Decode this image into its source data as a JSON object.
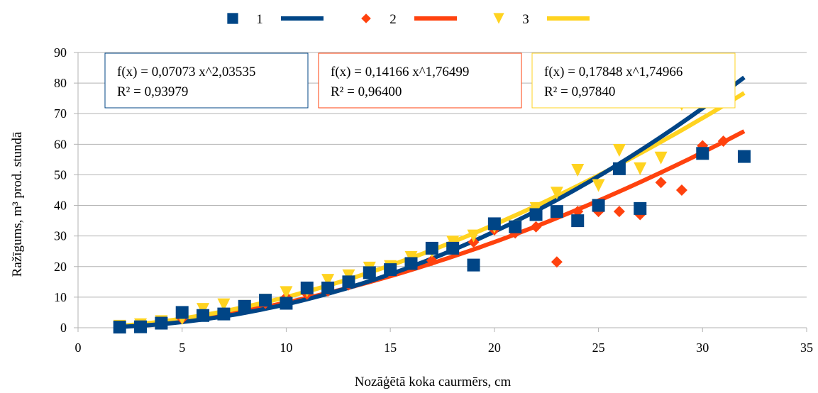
{
  "chart_data": {
    "type": "scatter",
    "xlabel": "Nozāģētā koka caurmērs, cm",
    "ylabel": "Ražīgums, m³ prod. stundā",
    "xlim": [
      0,
      35
    ],
    "ylim": [
      0,
      90
    ],
    "x_ticks": [
      "0",
      "5",
      "10",
      "15",
      "20",
      "25",
      "30",
      "35"
    ],
    "y_ticks": [
      "0",
      "10",
      "20",
      "30",
      "40",
      "50",
      "60",
      "70",
      "80",
      "90"
    ],
    "grid": "horizontal",
    "legend_position": "top",
    "series": [
      {
        "name": "1",
        "color": "#004586",
        "marker": "square",
        "points": [
          [
            2,
            0.2
          ],
          [
            3,
            0.3
          ],
          [
            4,
            1.5
          ],
          [
            5,
            5
          ],
          [
            6,
            4
          ],
          [
            7,
            4.5
          ],
          [
            8,
            7
          ],
          [
            9,
            9
          ],
          [
            10,
            8
          ],
          [
            11,
            13
          ],
          [
            12,
            13
          ],
          [
            13,
            15
          ],
          [
            14,
            18
          ],
          [
            15,
            19
          ],
          [
            16,
            21
          ],
          [
            17,
            26
          ],
          [
            18,
            26
          ],
          [
            19,
            20.5
          ],
          [
            20,
            34
          ],
          [
            21,
            33
          ],
          [
            22,
            37
          ],
          [
            23,
            38
          ],
          [
            24,
            35
          ],
          [
            25,
            40
          ],
          [
            26,
            52
          ],
          [
            27,
            39
          ],
          [
            28,
            77
          ],
          [
            30,
            57
          ],
          [
            32,
            56
          ]
        ],
        "trend": {
          "type": "power",
          "a": 0.07073,
          "b": 2.03535,
          "x_range": [
            2,
            32
          ]
        },
        "equation": "f(x) = 0,07073 x^2,03535",
        "r2": "R² = 0,93979"
      },
      {
        "name": "2",
        "color": "#ff420e",
        "marker": "diamond",
        "points": [
          [
            2,
            0.3
          ],
          [
            3,
            0.6
          ],
          [
            4,
            1.5
          ],
          [
            5,
            3
          ],
          [
            6,
            4
          ],
          [
            7,
            5
          ],
          [
            8,
            7
          ],
          [
            9,
            8
          ],
          [
            10,
            10
          ],
          [
            11,
            11
          ],
          [
            12,
            12
          ],
          [
            13,
            14
          ],
          [
            14,
            18
          ],
          [
            15,
            18
          ],
          [
            16,
            20
          ],
          [
            17,
            22
          ],
          [
            18,
            26
          ],
          [
            19,
            28
          ],
          [
            20,
            32
          ],
          [
            21,
            31
          ],
          [
            22,
            33
          ],
          [
            23,
            21.5
          ],
          [
            24,
            38
          ],
          [
            25,
            38
          ],
          [
            26,
            38
          ],
          [
            27,
            37
          ],
          [
            28,
            47.5
          ],
          [
            29,
            45
          ],
          [
            30,
            59.5
          ],
          [
            31,
            61
          ]
        ],
        "trend": {
          "type": "power",
          "a": 0.14166,
          "b": 1.76499,
          "x_range": [
            2,
            32
          ]
        },
        "equation": "f(x) = 0,14166 x^1,76499",
        "r2": "R² = 0,96400"
      },
      {
        "name": "3",
        "color": "#ffd320",
        "marker": "triangle-down",
        "points": [
          [
            2,
            0.5
          ],
          [
            3,
            1
          ],
          [
            4,
            2
          ],
          [
            5,
            3
          ],
          [
            6,
            6
          ],
          [
            7,
            7.5
          ],
          [
            8,
            7
          ],
          [
            9,
            9
          ],
          [
            10,
            11.5
          ],
          [
            11,
            12
          ],
          [
            12,
            15.5
          ],
          [
            13,
            17
          ],
          [
            14,
            19.5
          ],
          [
            15,
            20
          ],
          [
            16,
            23
          ],
          [
            17,
            25
          ],
          [
            18,
            28
          ],
          [
            19,
            30
          ],
          [
            20,
            33
          ],
          [
            21,
            33
          ],
          [
            22,
            39
          ],
          [
            23,
            44
          ],
          [
            24,
            51.5
          ],
          [
            25,
            46.5
          ],
          [
            26,
            58
          ],
          [
            27,
            52
          ],
          [
            28,
            55.5
          ],
          [
            29,
            73
          ]
        ],
        "trend": {
          "type": "power",
          "a": 0.17848,
          "b": 1.74966,
          "x_range": [
            2,
            32
          ]
        },
        "equation": "f(x) = 0,17848 x^1,74966",
        "r2": "R² = 0,97840"
      }
    ]
  }
}
